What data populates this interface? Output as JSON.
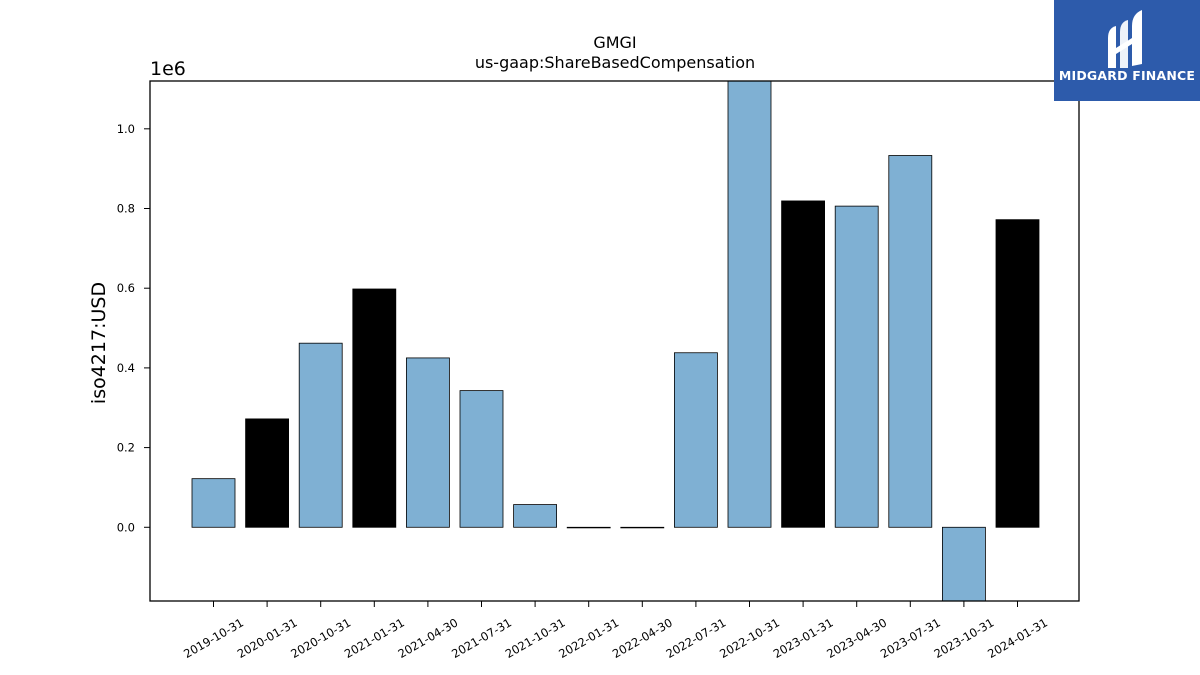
{
  "brand": {
    "name": "MIDGARD FINANCE",
    "icon": "midgard-logo-icon",
    "color": "#2d5bab"
  },
  "chart_data": {
    "type": "bar",
    "title": "GMGI",
    "subtitle": "us-gaap:ShareBasedCompensation",
    "ylabel": "iso4217:USD",
    "xlabel": "",
    "y_scale_label": "1e6",
    "ylim": [
      -185000,
      1120000
    ],
    "y_ticks": [
      0.0,
      0.2,
      0.4,
      0.6,
      0.8,
      1.0
    ],
    "y_tick_labels": [
      "0.0",
      "0.2",
      "0.4",
      "0.6",
      "0.8",
      "1.0"
    ],
    "categories": [
      "2019-10-31",
      "2020-01-31",
      "2020-10-31",
      "2021-01-31",
      "2021-04-30",
      "2021-07-31",
      "2021-10-31",
      "2022-01-31",
      "2022-04-30",
      "2022-07-31",
      "2022-10-31",
      "2023-01-31",
      "2023-04-30",
      "2023-07-31",
      "2023-10-31",
      "2024-01-31"
    ],
    "values": [
      122000,
      272000,
      462000,
      598000,
      425000,
      343000,
      57000,
      0,
      0,
      438000,
      1120000,
      819000,
      806000,
      933000,
      -185000,
      772000
    ],
    "bar_colors": [
      "#7fb0d3",
      "#000000",
      "#7fb0d3",
      "#000000",
      "#7fb0d3",
      "#7fb0d3",
      "#7fb0d3",
      "#000000",
      "#000000",
      "#7fb0d3",
      "#7fb0d3",
      "#000000",
      "#7fb0d3",
      "#7fb0d3",
      "#7fb0d3",
      "#000000"
    ],
    "grid": false,
    "legend": "none"
  }
}
